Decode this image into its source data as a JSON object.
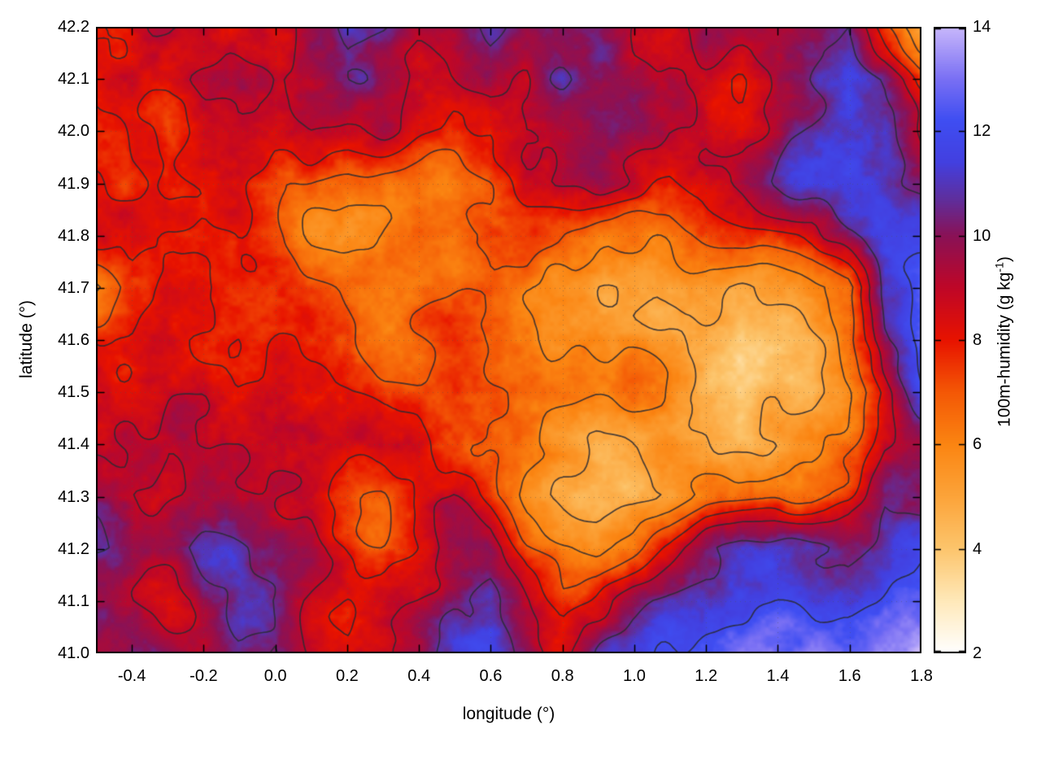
{
  "chart_data": {
    "type": "heatmap",
    "xlabel": "longitude (°)",
    "ylabel": "latitude (°)",
    "xlim": [
      -0.5,
      1.8
    ],
    "ylim": [
      41.0,
      42.2
    ],
    "clim": [
      2,
      14
    ],
    "xticks": [
      -0.4,
      -0.2,
      0.0,
      0.2,
      0.4,
      0.6,
      0.8,
      1.0,
      1.2,
      1.4,
      1.6,
      1.8
    ],
    "xtick_labels": [
      "-0.4",
      "-0.2",
      "0.0",
      "0.2",
      "0.4",
      "0.6",
      "0.8",
      "1.0",
      "1.2",
      "1.4",
      "1.6",
      "1.8"
    ],
    "yticks": [
      42.2,
      42.1,
      42.0,
      41.9,
      41.8,
      41.7,
      41.6,
      41.5,
      41.4,
      41.3,
      41.2,
      41.1,
      41.0
    ],
    "ytick_labels": [
      "42.2",
      "42.1",
      "42.0",
      "41.9",
      "41.8",
      "41.7",
      "41.6",
      "41.5",
      "41.4",
      "41.3",
      "41.2",
      "41.1",
      "41.0"
    ],
    "colorbar": {
      "label_pre": "100m-humidity (g kg",
      "label_sup": "-1",
      "label_post": ")",
      "ticks": [
        2,
        4,
        6,
        8,
        10,
        12,
        14
      ],
      "tick_labels": [
        "2",
        "4",
        "6",
        "8",
        "10",
        "12",
        "14"
      ],
      "position": "right"
    },
    "palette": [
      {
        "value": 2,
        "color": "#ffffff"
      },
      {
        "value": 3,
        "color": "#ffe9b9"
      },
      {
        "value": 4,
        "color": "#fdc56c"
      },
      {
        "value": 5,
        "color": "#fca43a"
      },
      {
        "value": 6,
        "color": "#fb8512"
      },
      {
        "value": 7,
        "color": "#f45806"
      },
      {
        "value": 8,
        "color": "#e81300"
      },
      {
        "value": 9,
        "color": "#bf0728"
      },
      {
        "value": 10,
        "color": "#8a1257"
      },
      {
        "value": 10.7,
        "color": "#5f2f9e"
      },
      {
        "value": 11.4,
        "color": "#4340e0"
      },
      {
        "value": 12.2,
        "color": "#3f4ef2"
      },
      {
        "value": 13,
        "color": "#7a70f4"
      },
      {
        "value": 14,
        "color": "#c9b8fb"
      }
    ],
    "grid_lines": {
      "show": true,
      "style": "dotted"
    },
    "contours": {
      "levels": [
        5,
        6,
        7,
        8,
        9,
        10.5,
        12
      ],
      "color": "#2a2a33"
    },
    "grid": {
      "units": "g kg⁻¹",
      "lon_min": -0.5,
      "lon_max": 1.8,
      "lat_min": 41.0,
      "lat_max": 42.2,
      "rows_order": "north-to-south",
      "values": [
        [
          8.5,
          8.5,
          9.5,
          9,
          8.5,
          9,
          10,
          11,
          10,
          9,
          9.5,
          11.5,
          10.5,
          9.5,
          10.5,
          9.5,
          9,
          10.5,
          9.5,
          8.5,
          10,
          11,
          7.5,
          5
        ],
        [
          8,
          8.5,
          8,
          9,
          9.5,
          9,
          9.5,
          10.5,
          9.5,
          8.5,
          9,
          10,
          9.5,
          10.5,
          9.5,
          9,
          9.5,
          9,
          8.5,
          9.5,
          10.5,
          12,
          10.5,
          7.5
        ],
        [
          7.5,
          8,
          7,
          8.5,
          9,
          8.5,
          9,
          8.5,
          9,
          8.5,
          8,
          8.5,
          9.5,
          9,
          9.5,
          10,
          9,
          9.5,
          8.5,
          9.5,
          10.5,
          12,
          11.5,
          9
        ],
        [
          8,
          7.5,
          7.5,
          8,
          8,
          7,
          6.5,
          6,
          6,
          6.5,
          7,
          7.5,
          8.5,
          9,
          9.5,
          9,
          8.5,
          9,
          9.5,
          10.5,
          11.5,
          12,
          11.5,
          10.5
        ],
        [
          8,
          8,
          7.5,
          7.5,
          8,
          7.5,
          6.5,
          6,
          6,
          6.5,
          6,
          7,
          7.5,
          7,
          6.5,
          6.5,
          6.5,
          7,
          7.5,
          8,
          8.5,
          11,
          12,
          11.5
        ],
        [
          6,
          7.5,
          8,
          8,
          8,
          7.5,
          7.5,
          7,
          6.5,
          6,
          6.5,
          7,
          6.5,
          6,
          5.5,
          5.5,
          5.5,
          5.5,
          5,
          5.5,
          6,
          6.5,
          11,
          12
        ],
        [
          8.5,
          8,
          8.5,
          8,
          8.5,
          8,
          7.5,
          7.5,
          6.5,
          7,
          7.5,
          7,
          6.5,
          6,
          6,
          5.5,
          5.5,
          5,
          4.5,
          4.5,
          5,
          6.5,
          10.5,
          12
        ],
        [
          9,
          8.5,
          8.5,
          9,
          8.5,
          8.5,
          8,
          8,
          7.5,
          7.5,
          8,
          7.5,
          7,
          6.5,
          6,
          6,
          5.5,
          5,
          4.5,
          5,
          4.5,
          6,
          8,
          11.5
        ],
        [
          9,
          9,
          8.5,
          9,
          9,
          8.5,
          8.5,
          8,
          8.5,
          9,
          8,
          7,
          6,
          5.5,
          5,
          5.5,
          6,
          5.5,
          4.5,
          4.5,
          5.5,
          6.5,
          8.5,
          9
        ],
        [
          9.5,
          9,
          9,
          9.5,
          9,
          9,
          8.5,
          7.5,
          7,
          8.5,
          9,
          7.5,
          6,
          5,
          4.5,
          4.5,
          5,
          6,
          6.5,
          7,
          6.5,
          7.5,
          10,
          9.5
        ],
        [
          10.5,
          10,
          10.5,
          11,
          10.5,
          10,
          9.5,
          8,
          7,
          8,
          9.5,
          10,
          7.5,
          6.5,
          6,
          7,
          8.5,
          10.5,
          11.5,
          11.5,
          11,
          10.5,
          11,
          11.5
        ],
        [
          10,
          9.5,
          8.5,
          9.5,
          10.5,
          10,
          8.5,
          7.5,
          8,
          9,
          10.5,
          11,
          9,
          7.5,
          8.5,
          10.5,
          11.5,
          12,
          12,
          12.5,
          12,
          12,
          12.5,
          12.5
        ],
        [
          9.5,
          10.5,
          10,
          9,
          10,
          10.5,
          9,
          8,
          8.5,
          9.5,
          11,
          11.5,
          10,
          9,
          11,
          11.5,
          12,
          12.5,
          13,
          13,
          13.5,
          13.5,
          13.5,
          14
        ]
      ]
    }
  }
}
